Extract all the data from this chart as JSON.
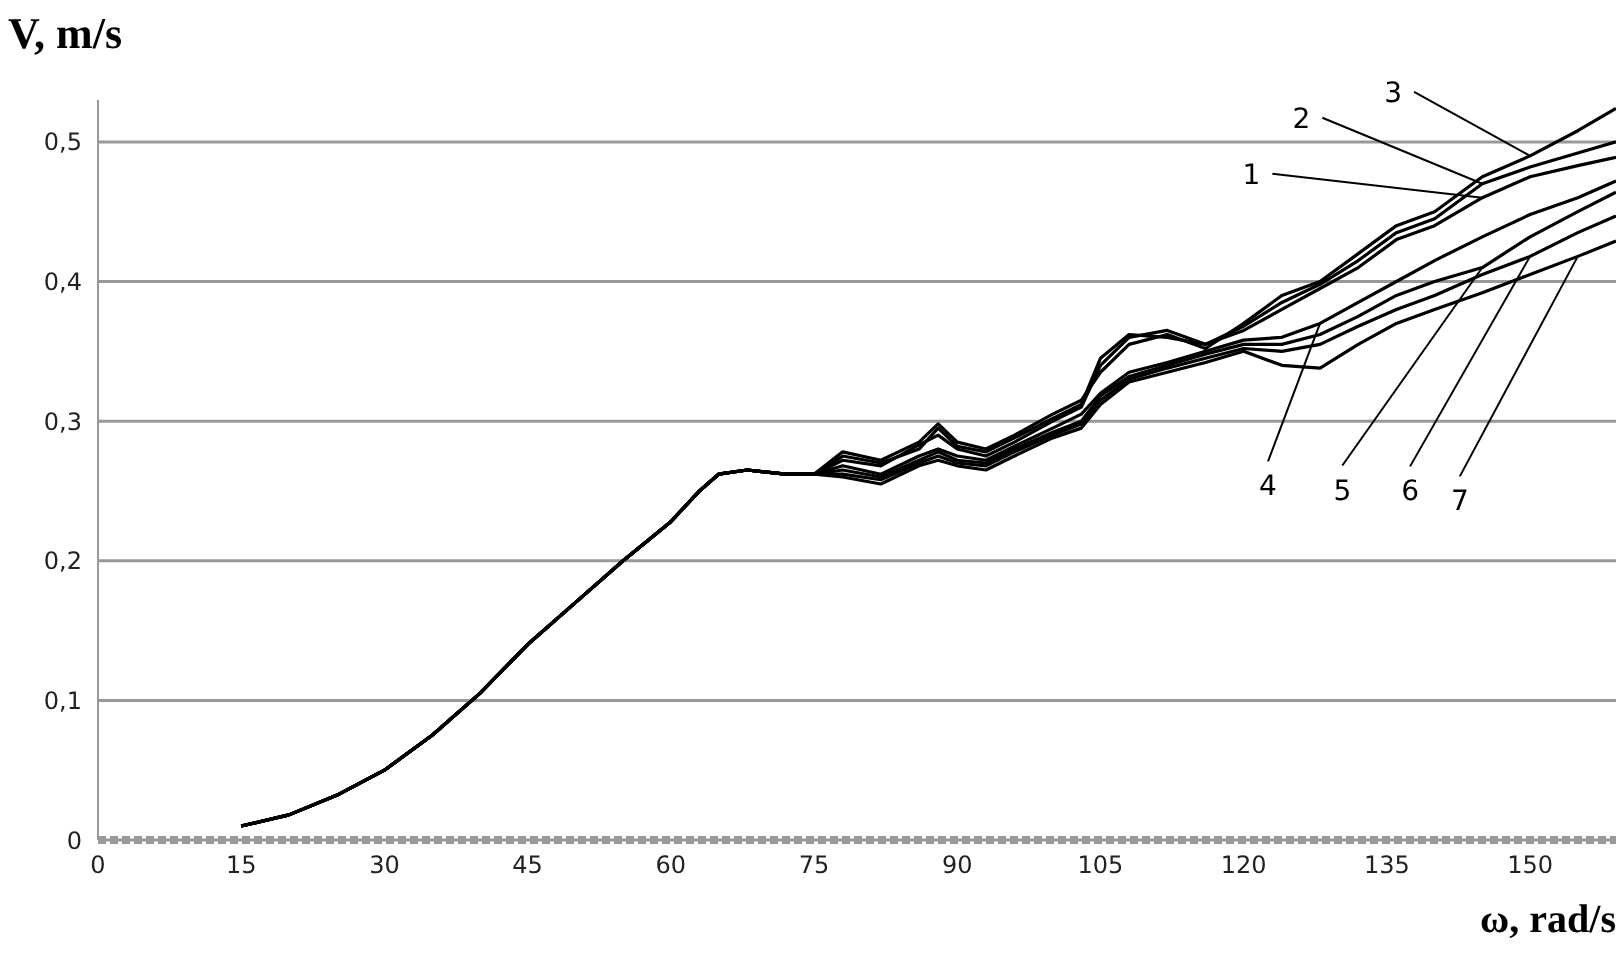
{
  "chart_data": {
    "type": "line",
    "xlabel": "ω, rad/s",
    "ylabel": "V, m/s",
    "x": [
      15,
      20,
      25,
      30,
      35,
      40,
      45,
      50,
      55,
      60,
      63,
      65,
      68,
      72,
      75,
      78,
      82,
      86,
      88,
      90,
      93,
      96,
      100,
      103,
      105,
      108,
      112,
      116,
      120,
      124,
      128,
      132,
      136,
      140,
      145,
      150,
      155,
      159
    ],
    "xlim": [
      0,
      159
    ],
    "xticks": [
      0,
      15,
      30,
      45,
      60,
      75,
      90,
      105,
      120,
      135,
      150
    ],
    "ylim": [
      0,
      0.53
    ],
    "yticks": [
      0,
      {
        "value": 0.1,
        "label": "0,1"
      },
      {
        "value": 0.2,
        "label": "0,2"
      },
      {
        "value": 0.3,
        "label": "0,3"
      },
      {
        "value": 0.4,
        "label": "0,4"
      },
      {
        "value": 0.5,
        "label": "0,5"
      }
    ],
    "grid": "y",
    "legend": false,
    "marker": "none",
    "annotations": [
      {
        "text": "1",
        "x": 145,
        "y": 0.46
      },
      {
        "text": "2",
        "x": 145,
        "y": 0.47
      },
      {
        "text": "3",
        "x": 150,
        "y": 0.49
      },
      {
        "text": "4",
        "x": 128,
        "y": 0.37
      },
      {
        "text": "5",
        "x": 145,
        "y": 0.41
      },
      {
        "text": "6",
        "x": 150,
        "y": 0.418
      },
      {
        "text": "7",
        "x": 155,
        "y": 0.418
      }
    ],
    "series": [
      {
        "color": "#000000",
        "values": [
          0.01,
          0.018,
          0.032,
          0.05,
          0.075,
          0.105,
          0.14,
          0.17,
          0.2,
          0.228,
          0.25,
          0.262,
          0.265,
          0.262,
          0.262,
          0.272,
          0.268,
          0.283,
          0.29,
          0.28,
          0.275,
          0.285,
          0.3,
          0.31,
          0.34,
          0.36,
          0.365,
          0.355,
          0.365,
          0.38,
          0.395,
          0.41,
          0.43,
          0.44,
          0.46,
          0.475,
          0.483,
          0.489
        ]
      },
      {
        "color": "#000000",
        "values": [
          0.01,
          0.018,
          0.032,
          0.05,
          0.075,
          0.105,
          0.14,
          0.17,
          0.2,
          0.228,
          0.25,
          0.262,
          0.265,
          0.262,
          0.262,
          0.275,
          0.27,
          0.28,
          0.295,
          0.282,
          0.278,
          0.288,
          0.302,
          0.312,
          0.345,
          0.362,
          0.36,
          0.355,
          0.368,
          0.385,
          0.398,
          0.415,
          0.435,
          0.445,
          0.47,
          0.482,
          0.492,
          0.5
        ]
      },
      {
        "color": "#000000",
        "values": [
          0.01,
          0.018,
          0.032,
          0.05,
          0.075,
          0.105,
          0.14,
          0.17,
          0.2,
          0.228,
          0.25,
          0.262,
          0.265,
          0.262,
          0.262,
          0.278,
          0.272,
          0.285,
          0.298,
          0.285,
          0.28,
          0.29,
          0.305,
          0.315,
          0.335,
          0.355,
          0.362,
          0.352,
          0.37,
          0.39,
          0.4,
          0.42,
          0.44,
          0.45,
          0.475,
          0.49,
          0.508,
          0.524
        ]
      },
      {
        "color": "#000000",
        "values": [
          0.01,
          0.018,
          0.032,
          0.05,
          0.075,
          0.105,
          0.14,
          0.17,
          0.2,
          0.228,
          0.25,
          0.262,
          0.265,
          0.262,
          0.262,
          0.268,
          0.262,
          0.275,
          0.28,
          0.275,
          0.272,
          0.282,
          0.295,
          0.305,
          0.32,
          0.335,
          0.342,
          0.35,
          0.358,
          0.36,
          0.37,
          0.385,
          0.4,
          0.415,
          0.432,
          0.448,
          0.46,
          0.472
        ]
      },
      {
        "color": "#000000",
        "values": [
          0.01,
          0.018,
          0.032,
          0.05,
          0.075,
          0.105,
          0.14,
          0.17,
          0.2,
          0.228,
          0.25,
          0.262,
          0.265,
          0.262,
          0.262,
          0.265,
          0.26,
          0.272,
          0.278,
          0.272,
          0.27,
          0.28,
          0.292,
          0.3,
          0.318,
          0.332,
          0.34,
          0.348,
          0.355,
          0.355,
          0.362,
          0.375,
          0.39,
          0.4,
          0.41,
          0.432,
          0.45,
          0.464
        ]
      },
      {
        "color": "#000000",
        "values": [
          0.01,
          0.018,
          0.032,
          0.05,
          0.075,
          0.105,
          0.14,
          0.17,
          0.2,
          0.228,
          0.25,
          0.262,
          0.265,
          0.262,
          0.262,
          0.262,
          0.258,
          0.27,
          0.275,
          0.27,
          0.268,
          0.278,
          0.29,
          0.298,
          0.315,
          0.33,
          0.338,
          0.345,
          0.352,
          0.35,
          0.355,
          0.368,
          0.38,
          0.39,
          0.405,
          0.418,
          0.435,
          0.447
        ]
      },
      {
        "color": "#000000",
        "values": [
          0.01,
          0.018,
          0.032,
          0.05,
          0.075,
          0.105,
          0.14,
          0.17,
          0.2,
          0.228,
          0.25,
          0.262,
          0.265,
          0.262,
          0.262,
          0.26,
          0.255,
          0.268,
          0.272,
          0.268,
          0.265,
          0.275,
          0.288,
          0.295,
          0.312,
          0.328,
          0.335,
          0.342,
          0.35,
          0.34,
          0.338,
          0.355,
          0.37,
          0.38,
          0.392,
          0.405,
          0.418,
          0.429
        ]
      }
    ]
  }
}
